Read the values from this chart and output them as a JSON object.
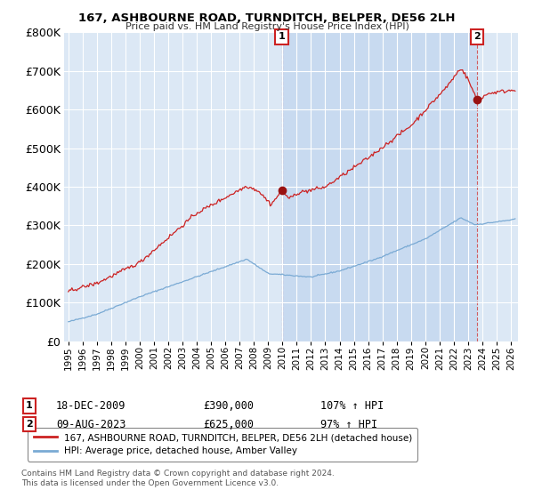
{
  "title": "167, ASHBOURNE ROAD, TURNDITCH, BELPER, DE56 2LH",
  "subtitle": "Price paid vs. HM Land Registry's House Price Index (HPI)",
  "legend_line1": "167, ASHBOURNE ROAD, TURNDITCH, BELPER, DE56 2LH (detached house)",
  "legend_line2": "HPI: Average price, detached house, Amber Valley",
  "annotation1_date": "18-DEC-2009",
  "annotation1_price": "£390,000",
  "annotation1_hpi": "107% ↑ HPI",
  "annotation2_date": "09-AUG-2023",
  "annotation2_price": "£625,000",
  "annotation2_hpi": "97% ↑ HPI",
  "footer": "Contains HM Land Registry data © Crown copyright and database right 2024.\nThis data is licensed under the Open Government Licence v3.0.",
  "hpi_color": "#7aaad4",
  "price_color": "#cc2222",
  "sale_marker_color": "#991111",
  "background_color": "#dce8f5",
  "highlight_color": "#c8daf0",
  "ylim": [
    0,
    800000
  ],
  "yticks": [
    0,
    100000,
    200000,
    300000,
    400000,
    500000,
    600000,
    700000,
    800000
  ],
  "sale1_t": 2009.958,
  "sale1_v": 390000,
  "sale2_t": 2023.625,
  "sale2_v": 625000,
  "xmin": 1994.7,
  "xmax": 2026.5
}
